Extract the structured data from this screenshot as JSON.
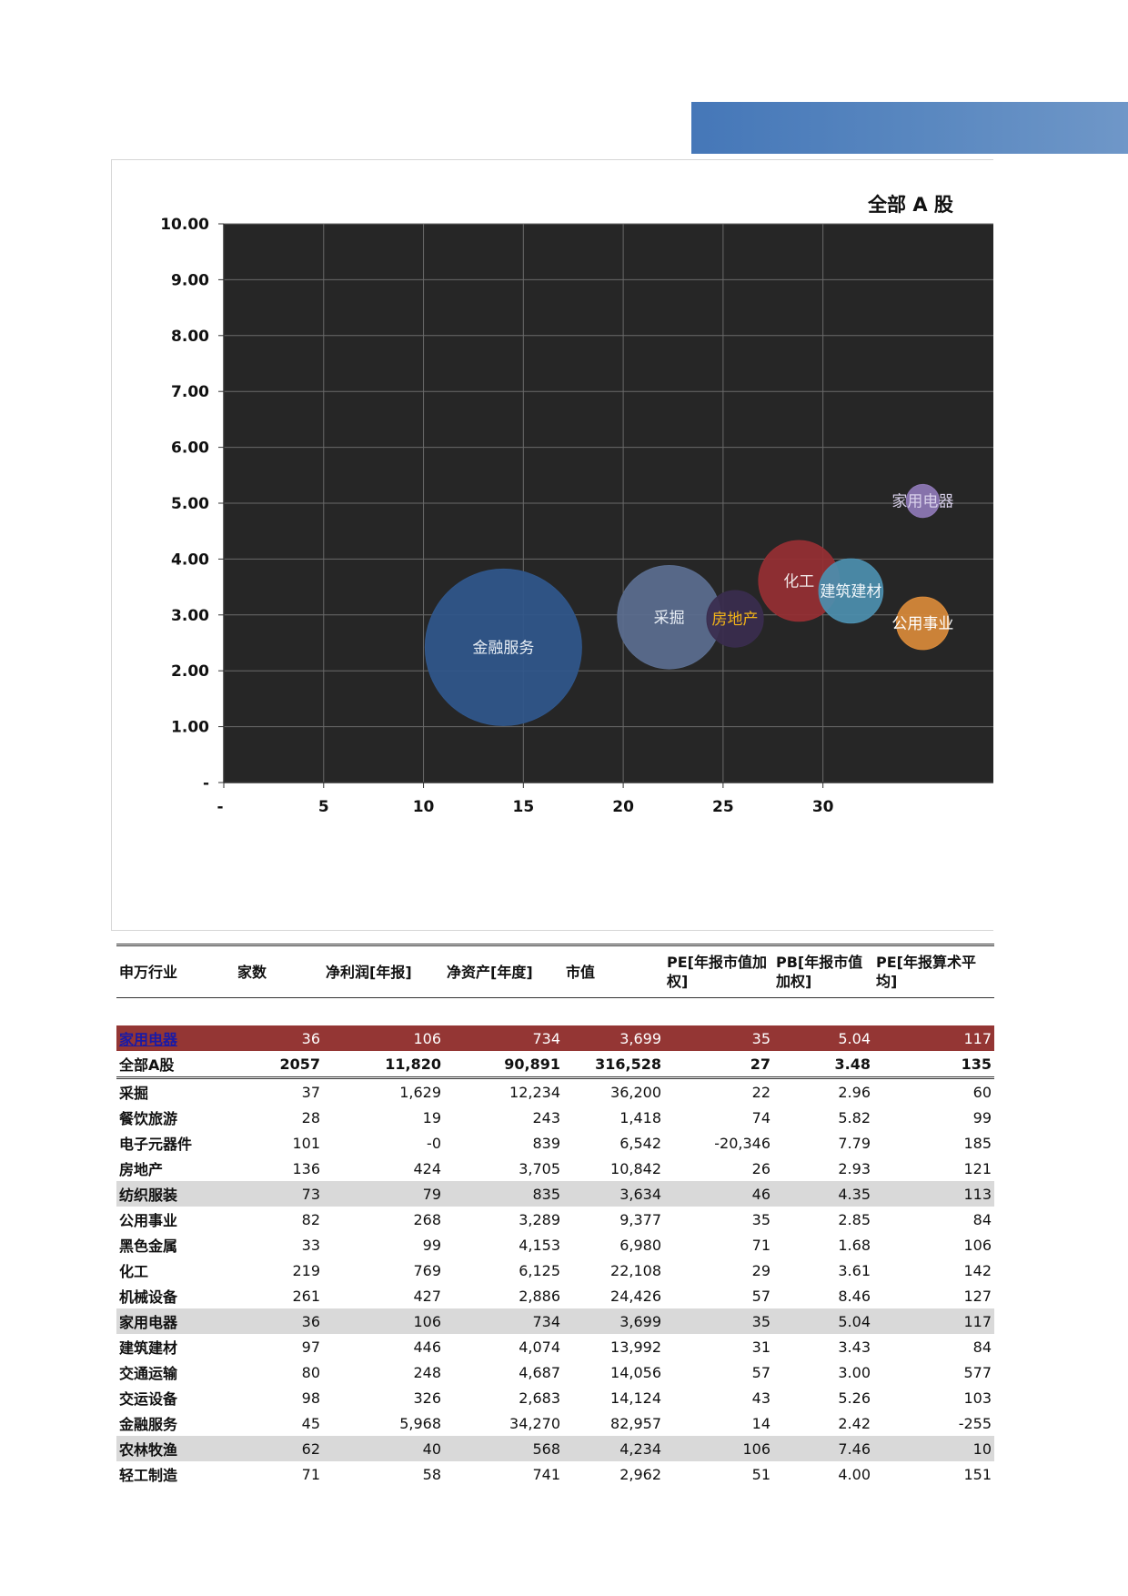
{
  "chart_data": {
    "type": "scatter",
    "title": "全部 A 股",
    "x_ticks": [
      "-",
      "5",
      "10",
      "15",
      "20",
      "25",
      "30"
    ],
    "y_ticks": [
      "-",
      "1.00",
      "2.00",
      "3.00",
      "4.00",
      "5.00",
      "6.00",
      "7.00",
      "8.00",
      "9.00",
      "10.00"
    ],
    "xlim": [
      0,
      35
    ],
    "ylim": [
      0,
      10
    ],
    "grid": true,
    "plot_background": "#262626",
    "points": [
      {
        "label": "金融服务",
        "x": 14.0,
        "y": 2.42,
        "size": 82957,
        "color": "#30578c",
        "label_color": "#e8eef5"
      },
      {
        "label": "采掘",
        "x": 22.3,
        "y": 2.96,
        "size": 36200,
        "color": "#5b6e90",
        "label_color": "#e8eef5"
      },
      {
        "label": "房地产",
        "x": 25.6,
        "y": 2.93,
        "size": 10842,
        "color": "#3a2d4e",
        "label_color": "#f2b418"
      },
      {
        "label": "化工",
        "x": 28.8,
        "y": 3.61,
        "size": 22108,
        "color": "#962f33",
        "label_color": "#f0e6e6"
      },
      {
        "label": "建筑建材",
        "x": 31.4,
        "y": 3.43,
        "size": 13992,
        "color": "#4c8faf",
        "label_color": "#f0f6fa"
      },
      {
        "label": "家用电器",
        "x": 35.0,
        "y": 5.04,
        "size": 3699,
        "color": "#8e78b6",
        "label_color": "#d8d0ea"
      },
      {
        "label": "公用事业",
        "x": 35.0,
        "y": 2.85,
        "size": 9377,
        "color": "#d98a3a",
        "label_color": "#ffffff"
      }
    ]
  },
  "table": {
    "headers": [
      "申万行业",
      "家数",
      "净利润[年报]",
      "净资产[年度]",
      "市值",
      "PE[年报市值加权]",
      "PB[年报市值加权]",
      "PE[年报算术平均]"
    ],
    "highlight_row": [
      "家用电器",
      "36",
      "106",
      "734",
      "3,699",
      "35",
      "5.04",
      "117"
    ],
    "total_row": [
      "全部A股",
      "2057",
      "11,820",
      "90,891",
      "316,528",
      "27",
      "3.48",
      "135"
    ],
    "rows": [
      {
        "cells": [
          "采掘",
          "37",
          "1,629",
          "12,234",
          "36,200",
          "22",
          "2.96",
          "60"
        ],
        "shaded": false
      },
      {
        "cells": [
          "餐饮旅游",
          "28",
          "19",
          "243",
          "1,418",
          "74",
          "5.82",
          "99"
        ],
        "shaded": false
      },
      {
        "cells": [
          "电子元器件",
          "101",
          "-0",
          "839",
          "6,542",
          "-20,346",
          "7.79",
          "185"
        ],
        "shaded": false
      },
      {
        "cells": [
          "房地产",
          "136",
          "424",
          "3,705",
          "10,842",
          "26",
          "2.93",
          "121"
        ],
        "shaded": false
      },
      {
        "cells": [
          "纺织服装",
          "73",
          "79",
          "835",
          "3,634",
          "46",
          "4.35",
          "113"
        ],
        "shaded": true
      },
      {
        "cells": [
          "公用事业",
          "82",
          "268",
          "3,289",
          "9,377",
          "35",
          "2.85",
          "84"
        ],
        "shaded": false
      },
      {
        "cells": [
          "黑色金属",
          "33",
          "99",
          "4,153",
          "6,980",
          "71",
          "1.68",
          "106"
        ],
        "shaded": false
      },
      {
        "cells": [
          "化工",
          "219",
          "769",
          "6,125",
          "22,108",
          "29",
          "3.61",
          "142"
        ],
        "shaded": false
      },
      {
        "cells": [
          "机械设备",
          "261",
          "427",
          "2,886",
          "24,426",
          "57",
          "8.46",
          "127"
        ],
        "shaded": false
      },
      {
        "cells": [
          "家用电器",
          "36",
          "106",
          "734",
          "3,699",
          "35",
          "5.04",
          "117"
        ],
        "shaded": true
      },
      {
        "cells": [
          "建筑建材",
          "97",
          "446",
          "4,074",
          "13,992",
          "31",
          "3.43",
          "84"
        ],
        "shaded": false
      },
      {
        "cells": [
          "交通运输",
          "80",
          "248",
          "4,687",
          "14,056",
          "57",
          "3.00",
          "577"
        ],
        "shaded": false
      },
      {
        "cells": [
          "交运设备",
          "98",
          "326",
          "2,683",
          "14,124",
          "43",
          "5.26",
          "103"
        ],
        "shaded": false
      },
      {
        "cells": [
          "金融服务",
          "45",
          "5,968",
          "34,270",
          "82,957",
          "14",
          "2.42",
          "-255"
        ],
        "shaded": false
      },
      {
        "cells": [
          "农林牧渔",
          "62",
          "40",
          "568",
          "4,234",
          "106",
          "7.46",
          "10"
        ],
        "shaded": true
      },
      {
        "cells": [
          "轻工制造",
          "71",
          "58",
          "741",
          "2,962",
          "51",
          "4.00",
          "151"
        ],
        "shaded": false
      }
    ]
  }
}
